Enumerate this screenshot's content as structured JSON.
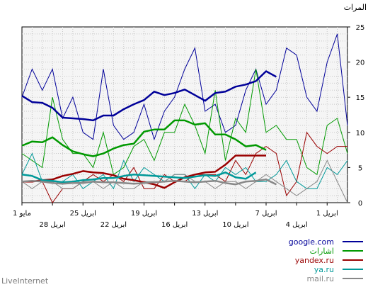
{
  "chart_data": {
    "type": "line",
    "ylabel": "المرات",
    "ylim": [
      0,
      25
    ],
    "y_ticks": [
      "0",
      "5",
      "10",
      "15",
      "20",
      "25"
    ],
    "x_ticks_top": [
      "1 مايو",
      "25 ابريل",
      "19 ابريل",
      "13 ابريل",
      "7 ابريل",
      "1 ابريل"
    ],
    "x_ticks_bottom": [
      "28 ابريل",
      "22 ابريل",
      "16 ابريل",
      "10 ابريل",
      "4 ابريل"
    ],
    "grid": true,
    "legend_position": "bottom-right",
    "series": [
      {
        "name": "google.com",
        "color": "#000099",
        "raw": [
          15,
          19,
          16,
          19,
          12,
          15,
          10,
          9,
          19,
          11,
          9,
          10,
          14,
          9,
          13,
          15,
          19,
          22,
          13,
          14,
          10,
          11,
          16,
          19,
          14,
          16,
          22,
          21,
          15,
          13,
          20,
          24,
          11
        ],
        "smooth": [
          15.2,
          14.3,
          14.2,
          13.5,
          12.1,
          12.0,
          11.9,
          11.7,
          12.4,
          12.4,
          13.3,
          14.0,
          14.6,
          15.8,
          15.3,
          15.6,
          16.1,
          15.3,
          14.5,
          15.6,
          15.8,
          16.5,
          16.8,
          17.3,
          18.7,
          17.9
        ]
      },
      {
        "name": "اشارات",
        "color": "#009900",
        "raw": [
          7,
          6,
          5,
          15,
          9,
          7,
          7,
          5,
          10,
          4,
          5,
          8,
          9,
          6,
          10,
          10,
          14,
          11,
          7,
          16,
          6,
          12,
          10,
          19,
          10,
          11,
          9,
          9,
          5,
          4,
          11,
          12,
          7
        ],
        "smooth": [
          8.1,
          8.7,
          8.6,
          9.3,
          8.2,
          7.3,
          6.9,
          6.6,
          7.0,
          7.7,
          8.2,
          8.4,
          10.1,
          10.4,
          10.4,
          11.7,
          11.7,
          11.1,
          11.3,
          9.7,
          9.7,
          9.0,
          8.0,
          8.2,
          7.5
        ]
      },
      {
        "name": "yandex.ru",
        "color": "#990000",
        "raw": [
          3,
          3,
          3,
          0,
          2,
          2,
          3,
          4,
          3,
          4,
          3,
          5,
          2,
          2,
          4,
          3,
          3,
          4,
          4,
          4,
          3,
          6,
          4,
          7,
          8,
          7,
          1,
          3,
          10,
          8,
          7,
          8,
          8
        ],
        "smooth": [
          3.0,
          3.0,
          3.2,
          3.3,
          3.8,
          4.1,
          4.5,
          4.3,
          4.2,
          3.9,
          3.4,
          3.2,
          2.9,
          2.6,
          2.1,
          2.9,
          3.6,
          4.0,
          4.3,
          4.4,
          5.4,
          6.7,
          6.7,
          6.7,
          6.7
        ]
      },
      {
        "name": "ya.ru",
        "color": "#009999",
        "raw": [
          4,
          7,
          3,
          3,
          3,
          4,
          2,
          3,
          4,
          2,
          6,
          3,
          5,
          4,
          3,
          4,
          4,
          2,
          4,
          3,
          5,
          4,
          5,
          3,
          3,
          4,
          6,
          3,
          2,
          2,
          5,
          4,
          6
        ],
        "smooth": [
          4.0,
          3.8,
          3.2,
          3.1,
          2.9,
          3.0,
          3.2,
          3.3,
          3.5,
          3.5,
          3.8,
          4.0,
          3.9,
          3.8,
          3.7,
          3.6,
          3.5,
          3.7,
          3.9,
          3.8,
          4.3,
          3.6,
          3.4,
          4.3
        ]
      },
      {
        "name": "mail.ru",
        "color": "#888888",
        "raw": [
          3,
          2,
          3,
          3,
          2,
          2,
          3,
          3,
          2,
          3,
          2,
          2,
          3,
          3,
          3,
          4,
          4,
          3,
          3,
          2,
          3,
          3,
          2,
          3,
          4,
          3,
          2,
          1,
          2,
          3,
          6,
          3,
          0
        ],
        "smooth": [
          3.0,
          3.1,
          3.0,
          2.8,
          2.7,
          2.8,
          2.8,
          3.0,
          2.9,
          2.9,
          2.8,
          2.7,
          2.8,
          2.9,
          3.0,
          3.1,
          3.0,
          2.9,
          3.0,
          3.1,
          2.8,
          2.6,
          3.0,
          3.1,
          3.3,
          2.6
        ]
      }
    ]
  },
  "watermark": "LiveInternet"
}
